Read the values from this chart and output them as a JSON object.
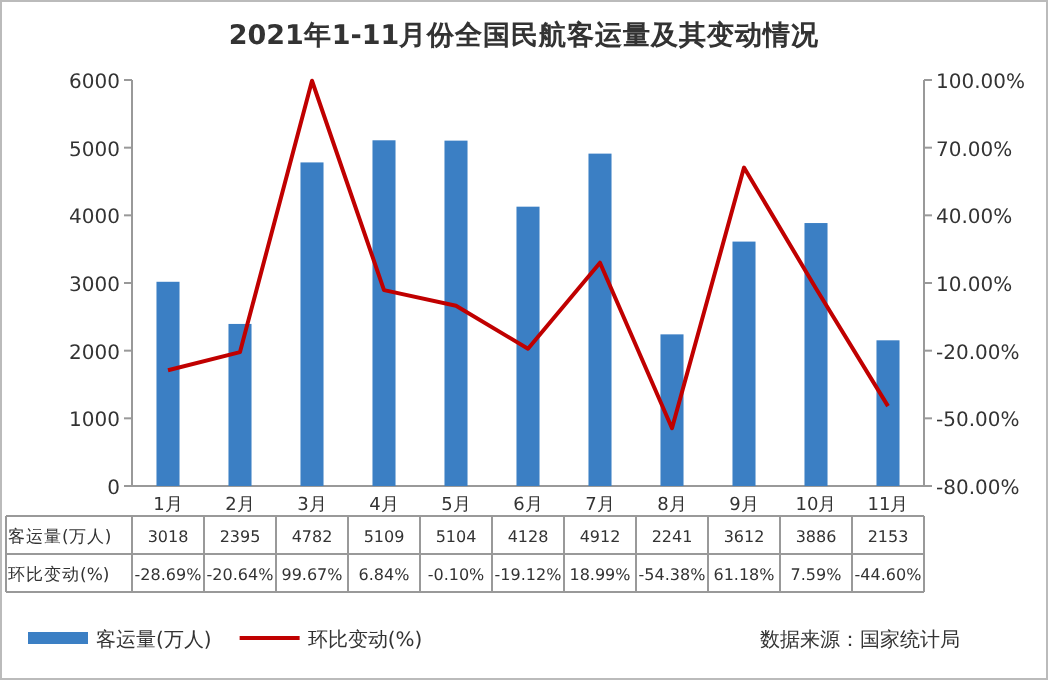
{
  "chart_data": {
    "type": "bar",
    "title": "2021年1-11月份全国民航客运量及其变动情况",
    "categories": [
      "1月",
      "2月",
      "3月",
      "4月",
      "5月",
      "6月",
      "7月",
      "8月",
      "9月",
      "10月",
      "11月"
    ],
    "series": [
      {
        "name": "客运量(万人)",
        "color": "#3b7fc4",
        "values": [
          3018,
          2395,
          4782,
          5109,
          5104,
          4128,
          4912,
          2241,
          3612,
          3886,
          2153
        ],
        "value_labels": [
          "3018",
          "2395",
          "4782",
          "5109",
          "5104",
          "4128",
          "4912",
          "2241",
          "3612",
          "3886",
          "2153"
        ]
      },
      {
        "name": "环比变动(%)",
        "type": "line",
        "axis": "y2",
        "color": "#c00000",
        "values": [
          -28.69,
          -20.64,
          99.67,
          6.84,
          -0.1,
          -19.12,
          18.99,
          -54.38,
          61.18,
          7.59,
          -44.6
        ],
        "value_labels": [
          "-28.69%",
          "-20.64%",
          "99.67%",
          "6.84%",
          "-0.10%",
          "-19.12%",
          "18.99%",
          "-54.38%",
          "61.18%",
          "7.59%",
          "-44.60%"
        ]
      }
    ],
    "ylim": [
      0,
      6000
    ],
    "yticks": [
      0,
      1000,
      2000,
      3000,
      4000,
      5000,
      6000
    ],
    "y2lim": [
      -80,
      100
    ],
    "y2ticks": [
      {
        "value": -80,
        "label": "-80.00%"
      },
      {
        "value": -50,
        "label": "-50.00%"
      },
      {
        "value": -20,
        "label": "-20.00%"
      },
      {
        "value": 10,
        "label": "10.00%"
      },
      {
        "value": 40,
        "label": "40.00%"
      },
      {
        "value": 70,
        "label": "70.00%"
      },
      {
        "value": 100,
        "label": "100.00%"
      }
    ],
    "grid": false,
    "legend": "bottom left",
    "marker": "none",
    "line_style": "solid",
    "annotations": [
      "数据来源：国家统计局"
    ]
  }
}
